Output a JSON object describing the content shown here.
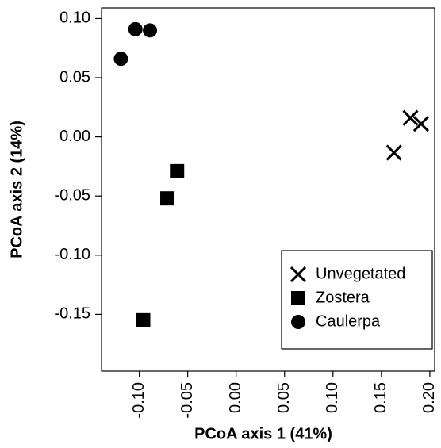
{
  "chart_data": {
    "type": "scatter",
    "x_label": "PCoA axis 1 (41%)",
    "y_label": "PCoA axis 2 (14%)",
    "xlim": [
      -0.139,
      0.205
    ],
    "ylim": [
      -0.198,
      0.109
    ],
    "xticks": [
      {
        "value": -0.1,
        "label": "-0.10"
      },
      {
        "value": -0.05,
        "label": "-0.05"
      },
      {
        "value": 0,
        "label": "0.00"
      },
      {
        "value": 0.05,
        "label": "0.05"
      },
      {
        "value": 0.1,
        "label": "0.10"
      },
      {
        "value": 0.15,
        "label": "0.15"
      },
      {
        "value": 0.2,
        "label": "0.20"
      }
    ],
    "yticks": [
      {
        "value": -0.15,
        "label": "-0.15"
      },
      {
        "value": -0.1,
        "label": "-0.10"
      },
      {
        "value": -0.05,
        "label": "-0.05"
      },
      {
        "value": 0,
        "label": "0.00"
      },
      {
        "value": 0.05,
        "label": "0.05"
      },
      {
        "value": 0.1,
        "label": "0.10"
      }
    ],
    "legend": "bottom-right",
    "series": [
      {
        "name": "Unvegetated",
        "color": "#000000",
        "marker": "x",
        "x": [
          0.163,
          0.18,
          0.191
        ],
        "values": [
          -0.0134,
          0.016,
          0.011
        ]
      },
      {
        "name": "Zostera",
        "color": "#000000",
        "marker": "square",
        "x": [
          -0.061,
          -0.071,
          -0.096
        ],
        "values": [
          -0.029,
          -0.052,
          -0.155
        ]
      },
      {
        "name": "Caulerpa",
        "color": "#000000",
        "marker": "circle",
        "x": [
          -0.119,
          -0.104,
          -0.089
        ],
        "values": [
          0.066,
          0.091,
          0.09
        ]
      }
    ]
  }
}
